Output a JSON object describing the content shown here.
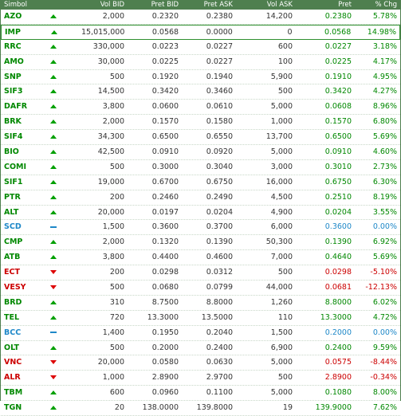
{
  "colors": {
    "up": "#008800",
    "down": "#cc0000",
    "unchanged": "#1e88c8",
    "header_bg": "#4f7f4f"
  },
  "columns": [
    "Simbol",
    "",
    "Vol BID",
    "Pret BID",
    "Pret ASK",
    "Vol ASK",
    "Pret",
    "% Chg"
  ],
  "selected_symbol": "IMP",
  "rows": [
    {
      "sym": "AZO",
      "dir": "up",
      "vol_bid": "2,000",
      "bid": "0.2320",
      "ask": "0.2380",
      "vol_ask": "14,200",
      "price": "0.2380",
      "chg": "5.78%"
    },
    {
      "sym": "IMP",
      "dir": "up",
      "vol_bid": "15,015,000",
      "bid": "0.0568",
      "ask": "0.0000",
      "vol_ask": "0",
      "price": "0.0568",
      "chg": "14.98%"
    },
    {
      "sym": "RRC",
      "dir": "up",
      "vol_bid": "330,000",
      "bid": "0.0223",
      "ask": "0.0227",
      "vol_ask": "600",
      "price": "0.0227",
      "chg": "3.18%"
    },
    {
      "sym": "AMO",
      "dir": "up",
      "vol_bid": "30,000",
      "bid": "0.0225",
      "ask": "0.0227",
      "vol_ask": "100",
      "price": "0.0225",
      "chg": "4.17%"
    },
    {
      "sym": "SNP",
      "dir": "up",
      "vol_bid": "500",
      "bid": "0.1920",
      "ask": "0.1940",
      "vol_ask": "5,900",
      "price": "0.1910",
      "chg": "4.95%"
    },
    {
      "sym": "SIF3",
      "dir": "up",
      "vol_bid": "14,500",
      "bid": "0.3420",
      "ask": "0.3460",
      "vol_ask": "500",
      "price": "0.3420",
      "chg": "4.27%"
    },
    {
      "sym": "DAFR",
      "dir": "up",
      "vol_bid": "3,800",
      "bid": "0.0600",
      "ask": "0.0610",
      "vol_ask": "5,000",
      "price": "0.0608",
      "chg": "8.96%"
    },
    {
      "sym": "BRK",
      "dir": "up",
      "vol_bid": "2,000",
      "bid": "0.1570",
      "ask": "0.1580",
      "vol_ask": "1,000",
      "price": "0.1570",
      "chg": "6.80%"
    },
    {
      "sym": "SIF4",
      "dir": "up",
      "vol_bid": "34,300",
      "bid": "0.6500",
      "ask": "0.6550",
      "vol_ask": "13,700",
      "price": "0.6500",
      "chg": "5.69%"
    },
    {
      "sym": "BIO",
      "dir": "up",
      "vol_bid": "42,500",
      "bid": "0.0910",
      "ask": "0.0920",
      "vol_ask": "5,000",
      "price": "0.0910",
      "chg": "4.60%"
    },
    {
      "sym": "COMI",
      "dir": "up",
      "vol_bid": "500",
      "bid": "0.3000",
      "ask": "0.3040",
      "vol_ask": "3,000",
      "price": "0.3010",
      "chg": "2.73%"
    },
    {
      "sym": "SIF1",
      "dir": "up",
      "vol_bid": "19,000",
      "bid": "0.6700",
      "ask": "0.6750",
      "vol_ask": "16,000",
      "price": "0.6750",
      "chg": "6.30%"
    },
    {
      "sym": "PTR",
      "dir": "up",
      "vol_bid": "200",
      "bid": "0.2460",
      "ask": "0.2490",
      "vol_ask": "4,500",
      "price": "0.2510",
      "chg": "8.19%"
    },
    {
      "sym": "ALT",
      "dir": "up",
      "vol_bid": "20,000",
      "bid": "0.0197",
      "ask": "0.0204",
      "vol_ask": "4,900",
      "price": "0.0204",
      "chg": "3.55%"
    },
    {
      "sym": "SCD",
      "dir": "eq",
      "vol_bid": "1,500",
      "bid": "0.3600",
      "ask": "0.3700",
      "vol_ask": "6,000",
      "price": "0.3600",
      "chg": "0.00%"
    },
    {
      "sym": "CMP",
      "dir": "up",
      "vol_bid": "2,000",
      "bid": "0.1320",
      "ask": "0.1390",
      "vol_ask": "50,300",
      "price": "0.1390",
      "chg": "6.92%"
    },
    {
      "sym": "ATB",
      "dir": "up",
      "vol_bid": "3,800",
      "bid": "0.4400",
      "ask": "0.4600",
      "vol_ask": "7,000",
      "price": "0.4640",
      "chg": "5.69%"
    },
    {
      "sym": "ECT",
      "dir": "down",
      "vol_bid": "200",
      "bid": "0.0298",
      "ask": "0.0312",
      "vol_ask": "500",
      "price": "0.0298",
      "chg": "-5.10%"
    },
    {
      "sym": "VESY",
      "dir": "down",
      "vol_bid": "500",
      "bid": "0.0680",
      "ask": "0.0799",
      "vol_ask": "44,000",
      "price": "0.0681",
      "chg": "-12.13%"
    },
    {
      "sym": "BRD",
      "dir": "up",
      "vol_bid": "310",
      "bid": "8.7500",
      "ask": "8.8000",
      "vol_ask": "1,260",
      "price": "8.8000",
      "chg": "6.02%"
    },
    {
      "sym": "TEL",
      "dir": "up",
      "vol_bid": "720",
      "bid": "13.3000",
      "ask": "13.5000",
      "vol_ask": "110",
      "price": "13.3000",
      "chg": "4.72%"
    },
    {
      "sym": "BCC",
      "dir": "eq",
      "vol_bid": "1,400",
      "bid": "0.1950",
      "ask": "0.2040",
      "vol_ask": "1,500",
      "price": "0.2000",
      "chg": "0.00%"
    },
    {
      "sym": "OLT",
      "dir": "up",
      "vol_bid": "500",
      "bid": "0.2000",
      "ask": "0.2400",
      "vol_ask": "6,900",
      "price": "0.2400",
      "chg": "9.59%"
    },
    {
      "sym": "VNC",
      "dir": "down",
      "vol_bid": "20,000",
      "bid": "0.0580",
      "ask": "0.0630",
      "vol_ask": "5,000",
      "price": "0.0575",
      "chg": "-8.44%"
    },
    {
      "sym": "ALR",
      "dir": "down",
      "vol_bid": "1,000",
      "bid": "2.8900",
      "ask": "2.9700",
      "vol_ask": "500",
      "price": "2.8900",
      "chg": "-0.34%"
    },
    {
      "sym": "TBM",
      "dir": "up",
      "vol_bid": "600",
      "bid": "0.0960",
      "ask": "0.1100",
      "vol_ask": "5,000",
      "price": "0.1080",
      "chg": "8.00%"
    },
    {
      "sym": "TGN",
      "dir": "up",
      "vol_bid": "20",
      "bid": "138.0000",
      "ask": "139.8000",
      "vol_ask": "19",
      "price": "139.9000",
      "chg": "7.62%"
    }
  ]
}
